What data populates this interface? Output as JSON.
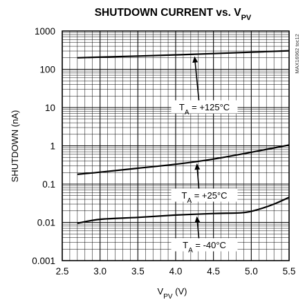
{
  "chart_data": {
    "type": "line",
    "title": "SHUTDOWN CURRENT vs. V",
    "title_sub": "PV",
    "xlabel": "V",
    "xlabel_sub": "PV",
    "xlabel_unit": " (V)",
    "ylabel": "SHUTDOWN (nA)",
    "xlim": [
      2.5,
      5.5
    ],
    "ylim": [
      0.001,
      1000
    ],
    "yscale": "log",
    "grid": true,
    "x_ticks": [
      "2.5",
      "3.0",
      "3.5",
      "4.0",
      "4.5",
      "5.0",
      "5.5"
    ],
    "y_ticks": [
      "0.001",
      "0.01",
      "0.1",
      "1",
      "10",
      "100",
      "1000"
    ],
    "code": "MAX16962 toc12",
    "series": [
      {
        "name": "T",
        "name_sub": "A",
        "name_rest": " = +125°C",
        "x": [
          2.7,
          3.0,
          3.5,
          4.0,
          4.5,
          5.0,
          5.5
        ],
        "y": [
          200,
          208,
          222,
          238,
          258,
          280,
          305
        ]
      },
      {
        "name": "T",
        "name_sub": "A",
        "name_rest": " = +25°C",
        "x": [
          2.7,
          3.0,
          3.5,
          4.0,
          4.5,
          5.0,
          5.5
        ],
        "y": [
          0.18,
          0.205,
          0.26,
          0.33,
          0.45,
          0.68,
          1.05
        ]
      },
      {
        "name": "T",
        "name_sub": "A",
        "name_rest": " = -40°C",
        "x": [
          2.7,
          3.0,
          3.5,
          4.0,
          4.5,
          4.9,
          5.1,
          5.3,
          5.5
        ],
        "y": [
          0.0095,
          0.012,
          0.0135,
          0.0155,
          0.017,
          0.018,
          0.022,
          0.03,
          0.045
        ]
      }
    ]
  }
}
